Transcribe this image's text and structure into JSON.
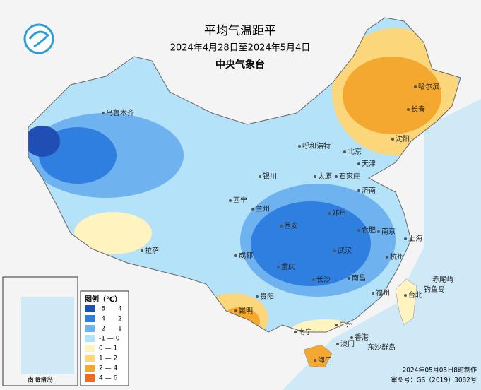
{
  "header": {
    "title": "平均气温距平",
    "date_range": "2024年4月28日至2024年5月4日",
    "agency": "中央气象台"
  },
  "legend": {
    "title": "图例（℃）",
    "items": [
      {
        "label": "-6 — -4",
        "color": "#1f4fb4"
      },
      {
        "label": "-4 — -2",
        "color": "#2f7fe0"
      },
      {
        "label": "-2 — -1",
        "color": "#6fb2f0"
      },
      {
        "label": "-1 — 0",
        "color": "#b4e2f8"
      },
      {
        "label": "0 — 1",
        "color": "#fff4c0"
      },
      {
        "label": "1 — 2",
        "color": "#fbd67a"
      },
      {
        "label": "2 — 4",
        "color": "#f4a830"
      },
      {
        "label": "4 — 6",
        "color": "#ee6a1c"
      }
    ]
  },
  "cities": [
    {
      "name": "乌鲁木齐"
    },
    {
      "name": "拉萨"
    },
    {
      "name": "西宁"
    },
    {
      "name": "兰州"
    },
    {
      "name": "银川"
    },
    {
      "name": "呼和浩特"
    },
    {
      "name": "北京"
    },
    {
      "name": "天津"
    },
    {
      "name": "石家庄"
    },
    {
      "name": "太原"
    },
    {
      "name": "济南"
    },
    {
      "name": "郑州"
    },
    {
      "name": "西安"
    },
    {
      "name": "成都"
    },
    {
      "name": "重庆"
    },
    {
      "name": "武汉"
    },
    {
      "name": "合肥"
    },
    {
      "name": "南京"
    },
    {
      "name": "上海"
    },
    {
      "name": "杭州"
    },
    {
      "name": "长沙"
    },
    {
      "name": "南昌"
    },
    {
      "name": "福州"
    },
    {
      "name": "贵阳"
    },
    {
      "name": "昆明"
    },
    {
      "name": "南宁"
    },
    {
      "name": "广州"
    },
    {
      "name": "香港"
    },
    {
      "name": "澳门"
    },
    {
      "name": "海口"
    },
    {
      "name": "台北"
    },
    {
      "name": "沈阳"
    },
    {
      "name": "长春"
    },
    {
      "name": "哈尔滨"
    }
  ],
  "islands": {
    "diaoyu": "钓鱼岛",
    "chiwei": "赤尾屿",
    "dongsha": "东沙群岛",
    "nanhai": "南海诸岛"
  },
  "footer": {
    "made": "2024年05月05日8时制作",
    "approval": "审图号：GS（2019）3082号"
  }
}
